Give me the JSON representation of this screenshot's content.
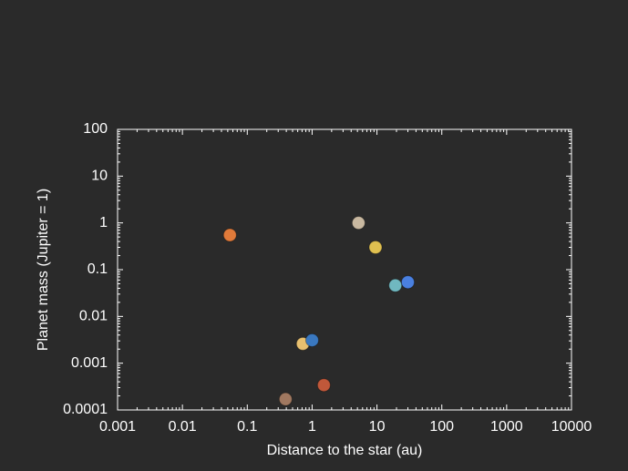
{
  "chart_data": {
    "type": "scatter",
    "x_label": "Distance to the star (au)",
    "y_label": "Planet mass (Jupiter = 1)",
    "log_x": true,
    "log_y": true,
    "xlim": [
      0.001,
      10000
    ],
    "ylim": [
      0.0001,
      100
    ],
    "xticks": [
      0.001,
      0.01,
      0.1,
      1,
      10,
      100,
      1000,
      10000
    ],
    "yticks": [
      0.0001,
      0.001,
      0.01,
      0.1,
      1,
      10,
      100
    ],
    "series": [
      {
        "x": [
          0.054,
          0.39,
          0.72,
          1,
          1.52,
          5.2,
          9.5,
          19.2,
          30
        ],
        "values": [
          0.55,
          0.00017,
          0.0026,
          0.0031,
          0.00034,
          1,
          0.3,
          0.046,
          0.054
        ],
        "colors": [
          "#e07a3a",
          "#a07860",
          "#e8c070",
          "#3a78c0",
          "#c0583a",
          "#c8b8a0",
          "#e0c050",
          "#70b8c0",
          "#4a80e0"
        ]
      }
    ]
  }
}
